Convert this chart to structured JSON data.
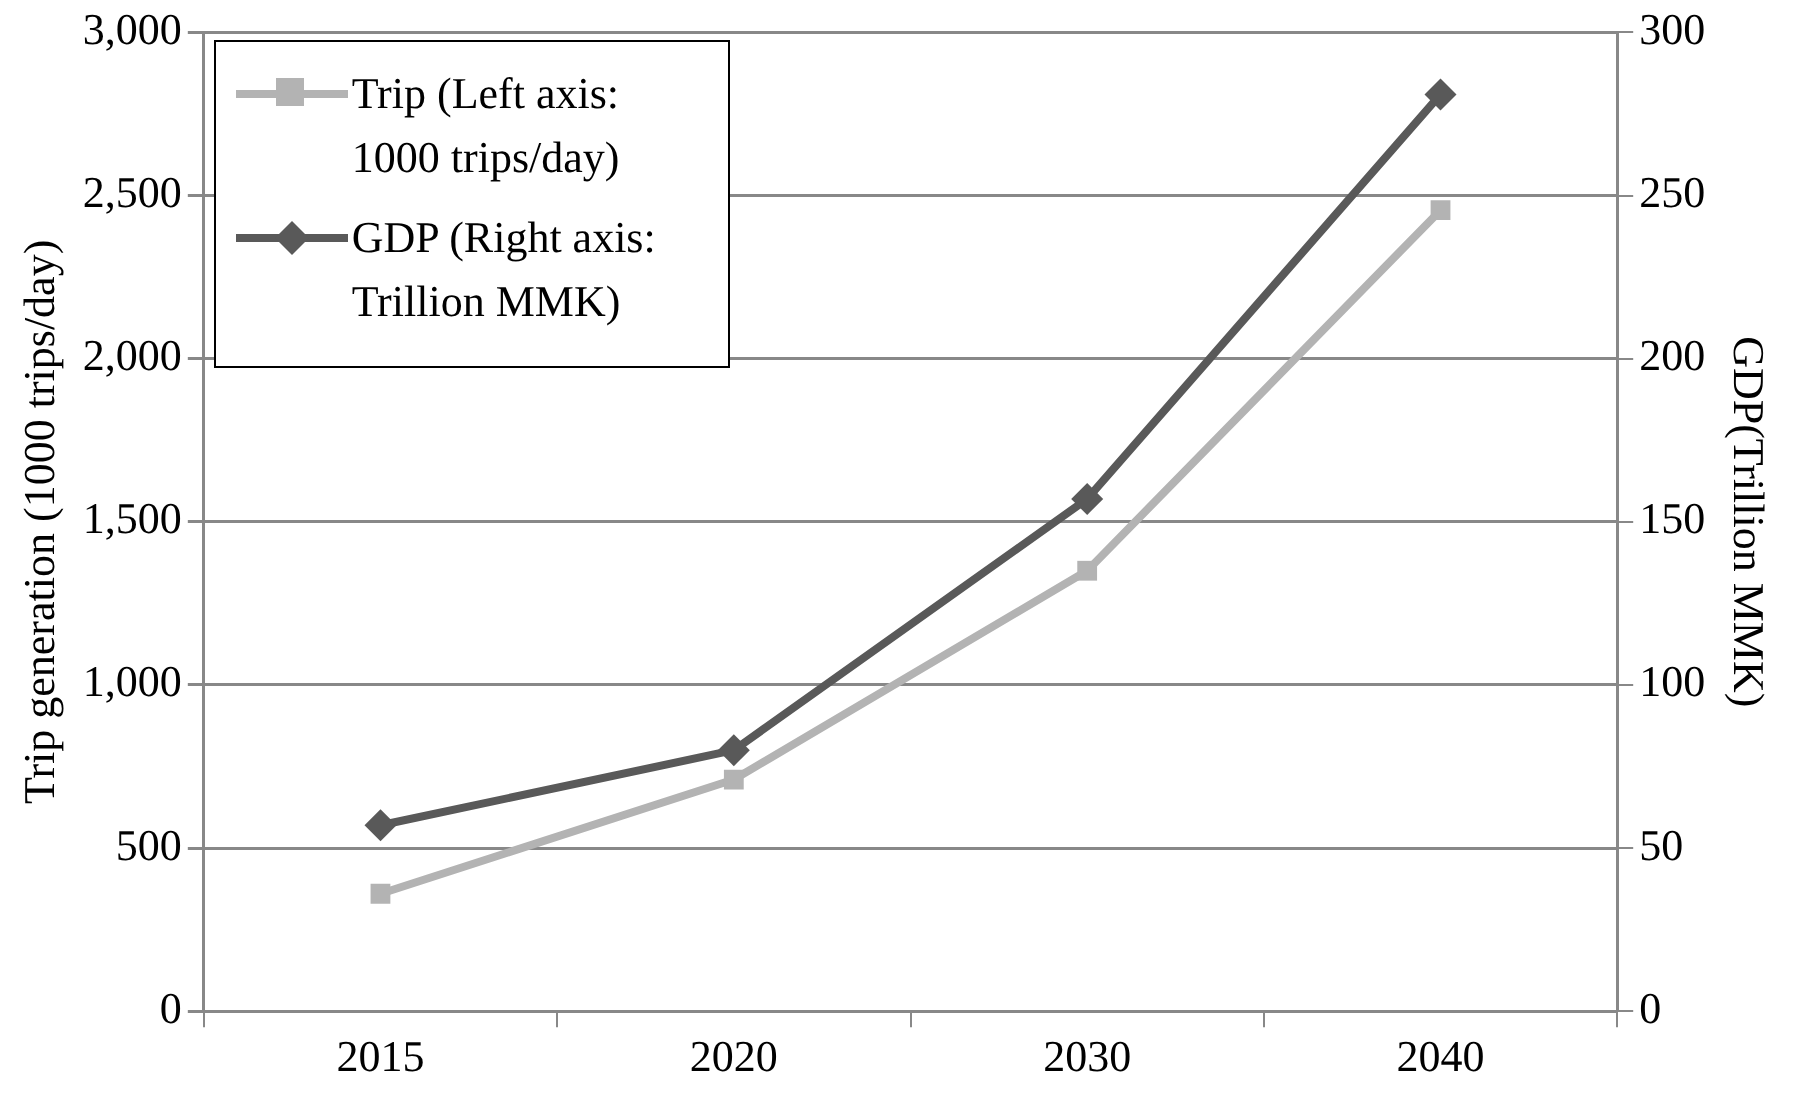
{
  "chart_data": {
    "type": "line",
    "ylabel": "Trip generation (1000 trips/day)",
    "y2label": "GDP(Trillion MMK)",
    "categories": [
      "2015",
      "2020",
      "2030",
      "2040"
    ],
    "series": [
      {
        "name": "Trip (Left axis: 1000 trips/day)",
        "color": "#b3b3b3",
        "marker": "square",
        "values": [
          360,
          710,
          1350,
          2455
        ]
      },
      {
        "name": "GDP (Right axis: Trillion MMK)",
        "color": "#595959",
        "marker": "diamond",
        "axis": "y2",
        "values": [
          57,
          80,
          157,
          281
        ]
      }
    ],
    "ylim": [
      0,
      3000
    ],
    "yticks": [
      0,
      500,
      {
        "value": 1000,
        "label": "1,000"
      },
      {
        "value": 1500,
        "label": "1,500"
      },
      {
        "value": 2000,
        "label": "2,000"
      },
      {
        "value": 2500,
        "label": "2,500"
      },
      {
        "value": 3000,
        "label": "3,000"
      }
    ],
    "y2lim": [
      0,
      300
    ],
    "y2ticks": [
      0,
      50,
      100,
      150,
      200,
      250,
      300
    ],
    "grid": "y",
    "legend": "top left",
    "line_style": "solid"
  }
}
